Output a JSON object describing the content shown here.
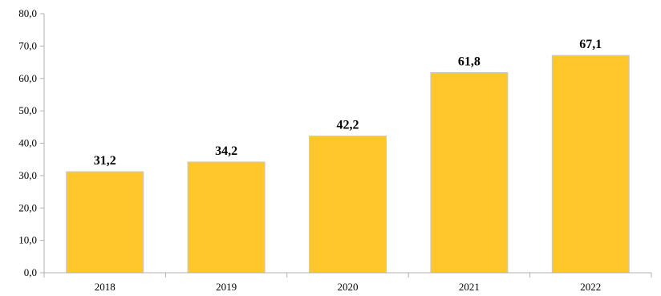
{
  "chart_data": {
    "type": "bar",
    "categories": [
      "2018",
      "2019",
      "2020",
      "2021",
      "2022"
    ],
    "values": [
      31.2,
      34.2,
      42.2,
      61.8,
      67.1
    ],
    "data_labels": [
      "31,2",
      "34,2",
      "42,2",
      "61,8",
      "67,1"
    ],
    "y_ticks": [
      "0,0",
      "10,0",
      "20,0",
      "30,0",
      "40,0",
      "50,0",
      "60,0",
      "70,0",
      "80,0"
    ],
    "ylim": [
      0,
      80
    ],
    "grid": false,
    "legend": "none",
    "title": "",
    "xlabel": "",
    "ylabel": "",
    "colors": {
      "bar": "#FFC72C",
      "axis": "#b0b0b0"
    }
  }
}
